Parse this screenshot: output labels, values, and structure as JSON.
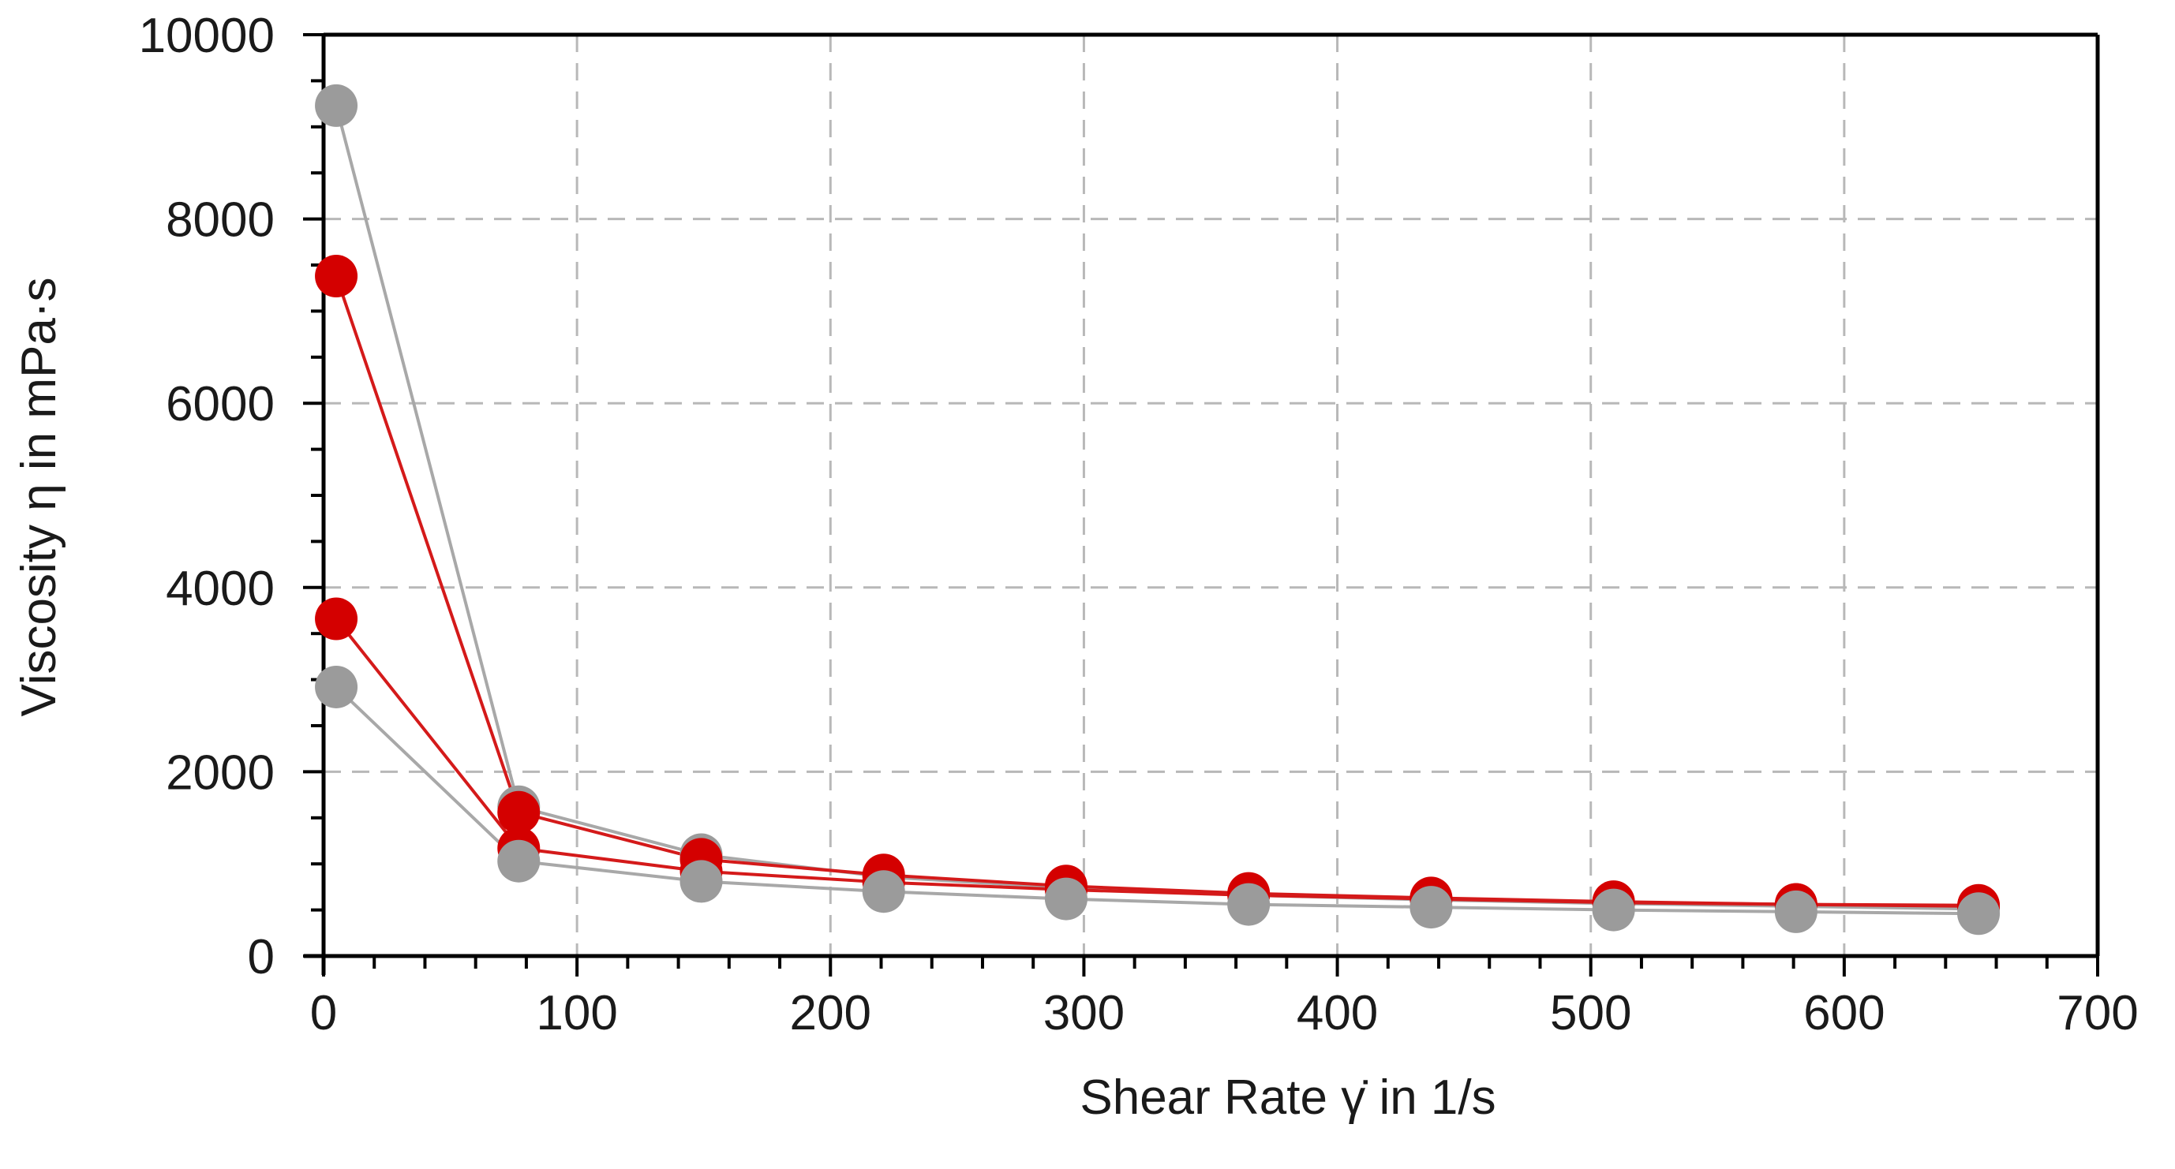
{
  "chart_data": {
    "type": "scatter",
    "title": "",
    "xlabel": "Shear Rate γ̇ in 1/s",
    "ylabel": "Viscosity η in mPa·s",
    "xlim": [
      0,
      700
    ],
    "ylim": [
      0,
      10000
    ],
    "x_ticks": [
      "0",
      "100",
      "200",
      "300",
      "400",
      "500",
      "600",
      "700"
    ],
    "y_ticks": [
      "0",
      "2000",
      "4000",
      "6000",
      "8000",
      "10000"
    ],
    "grid": true,
    "legend": "none",
    "colors": {
      "red": "#d40000",
      "gray": "#9b9b9b",
      "red_line": "#d41a1a",
      "gray_line": "#a8a8a8"
    },
    "series": [
      {
        "color": "gray",
        "x": [
          5,
          77,
          149,
          221,
          293,
          365,
          437,
          509,
          581,
          653
        ],
        "values": [
          9230,
          1620,
          1100,
          860,
          740,
          660,
          610,
          570,
          540,
          510
        ]
      },
      {
        "color": "red",
        "x": [
          5,
          77,
          149,
          221,
          293,
          365,
          437,
          509,
          581,
          653
        ],
        "values": [
          7380,
          1560,
          1050,
          880,
          760,
          680,
          630,
          590,
          560,
          540
        ]
      },
      {
        "color": "red",
        "x": [
          5,
          77,
          149,
          221,
          293,
          365,
          437,
          509,
          581,
          653
        ],
        "values": [
          3660,
          1170,
          920,
          800,
          720,
          660,
          620,
          580,
          560,
          550
        ]
      },
      {
        "color": "gray",
        "x": [
          5,
          77,
          149,
          221,
          293,
          365,
          437,
          509,
          581,
          653
        ],
        "values": [
          2920,
          1030,
          810,
          700,
          620,
          560,
          530,
          500,
          480,
          460
        ]
      }
    ]
  }
}
